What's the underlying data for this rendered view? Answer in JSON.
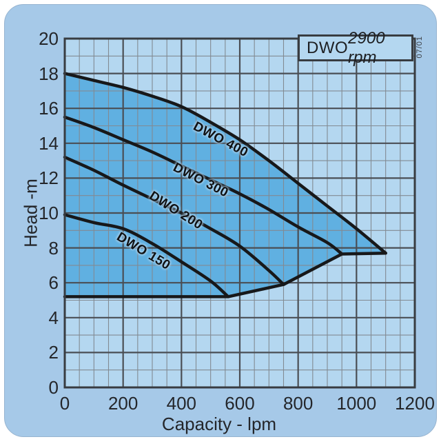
{
  "colors": {
    "panel_bg": "#a6c9e8",
    "plot_bg": "#b4d7f0",
    "shade": "#60b0e1",
    "grid_minor": "#828a92",
    "grid_major": "#4a4e54",
    "frame": "#383c41",
    "curve": "#17181a",
    "text": "#24262a"
  },
  "legend": {
    "model": "DWO",
    "speed": "2900 rpm"
  },
  "revision": "07/01",
  "chart_data": {
    "type": "line",
    "title": "DWO 2900 rpm",
    "xlabel": "Capacity - lpm",
    "ylabel": "Head -m",
    "xlim": [
      0,
      1200
    ],
    "ylim": [
      0,
      20
    ],
    "x_major": 200,
    "x_minor": 50,
    "y_major": 2,
    "y_minor": 1,
    "grid": "on",
    "legend_position": "top-right",
    "x_ticks": [
      "0",
      "200",
      "400",
      "600",
      "800",
      "1000",
      "1200"
    ],
    "y_ticks": [
      "0",
      "2",
      "4",
      "6",
      "8",
      "10",
      "12",
      "14",
      "16",
      "18",
      "20"
    ],
    "series": [
      {
        "name": "DWO 400",
        "points": [
          [
            0,
            18
          ],
          [
            100,
            17.6
          ],
          [
            200,
            17.2
          ],
          [
            300,
            16.7
          ],
          [
            400,
            16.1
          ],
          [
            500,
            15.2
          ],
          [
            600,
            14.2
          ],
          [
            700,
            13.0
          ],
          [
            800,
            11.7
          ],
          [
            900,
            10.4
          ],
          [
            1000,
            9.1
          ],
          [
            1100,
            7.7
          ]
        ],
        "label": {
          "q": 534,
          "h": 14.2,
          "angle": 28
        }
      },
      {
        "name": "DWO 300",
        "points": [
          [
            0,
            15.5
          ],
          [
            100,
            14.9
          ],
          [
            200,
            14.2
          ],
          [
            300,
            13.5
          ],
          [
            400,
            12.7
          ],
          [
            500,
            11.9
          ],
          [
            600,
            11.1
          ],
          [
            700,
            10.2
          ],
          [
            800,
            9.2
          ],
          [
            900,
            8.3
          ],
          [
            950,
            7.65
          ]
        ],
        "label": {
          "q": 465,
          "h": 11.85,
          "angle": 27
        }
      },
      {
        "name": "DWO 200",
        "points": [
          [
            0,
            13.2
          ],
          [
            100,
            12.45
          ],
          [
            200,
            11.6
          ],
          [
            300,
            10.8
          ],
          [
            400,
            10.0
          ],
          [
            500,
            9.1
          ],
          [
            600,
            8.1
          ],
          [
            700,
            6.7
          ],
          [
            750,
            5.9
          ]
        ],
        "label": {
          "q": 380,
          "h": 10.1,
          "angle": 32
        }
      },
      {
        "name": "DWO 150",
        "points": [
          [
            0,
            9.9
          ],
          [
            100,
            9.45
          ],
          [
            200,
            9.1
          ],
          [
            300,
            8.25
          ],
          [
            400,
            7.2
          ],
          [
            500,
            6.1
          ],
          [
            560,
            5.2
          ]
        ],
        "label": {
          "q": 269,
          "h": 7.8,
          "angle": 31
        }
      }
    ],
    "envelope_base": [
      [
        0,
        5.2
      ],
      [
        560,
        5.2
      ],
      [
        750,
        5.9
      ],
      [
        950,
        7.65
      ],
      [
        1100,
        7.7
      ]
    ]
  }
}
